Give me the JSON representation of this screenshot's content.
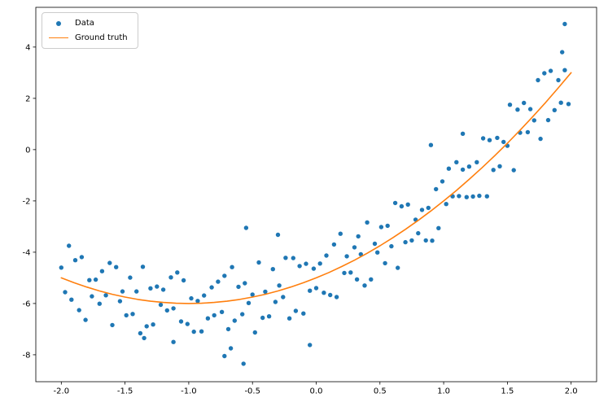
{
  "chart_data": {
    "type": "scatter",
    "title": "",
    "xlabel": "",
    "ylabel": "",
    "grid": false,
    "xlim": [
      -2.2,
      2.2
    ],
    "ylim": [
      -9.05,
      5.55
    ],
    "x_ticks": [
      -2.0,
      -1.5,
      -1.0,
      -0.5,
      0.0,
      0.5,
      1.0,
      1.5,
      2.0
    ],
    "x_tick_labels": [
      "-2.0",
      "-1.5",
      "-1.0",
      "-0.5",
      "0.0",
      "0.5",
      "1.0",
      "1.5",
      "2.0"
    ],
    "y_ticks": [
      -8,
      -6,
      -4,
      -2,
      0,
      2,
      4
    ],
    "y_tick_labels": [
      "-8",
      "-6",
      "-4",
      "-2",
      "0",
      "2",
      "4"
    ],
    "colors": {
      "scatter": "#1f77b4",
      "line": "#ff7f0e",
      "spine": "#000000"
    },
    "legend": {
      "position": "upper left",
      "entries": [
        {
          "label": "Data",
          "type": "marker",
          "color": "#1f77b4"
        },
        {
          "label": "Ground truth",
          "type": "line",
          "color": "#ff7f0e"
        }
      ]
    },
    "series": [
      {
        "name": "Data",
        "type": "scatter",
        "color": "#1f77b4",
        "marker_radius": 2.7,
        "points": [
          [
            -2.0,
            -4.6
          ],
          [
            -1.92,
            -5.85
          ],
          [
            -1.84,
            -4.19
          ],
          [
            -1.76,
            -5.72
          ],
          [
            -1.68,
            -4.74
          ],
          [
            -1.6,
            -6.84
          ],
          [
            -1.52,
            -5.53
          ],
          [
            -1.44,
            -6.41
          ],
          [
            -1.36,
            -4.57
          ],
          [
            -1.28,
            -6.82
          ],
          [
            -1.2,
            -5.46
          ],
          [
            -1.12,
            -6.19
          ],
          [
            -1.04,
            -5.1
          ],
          [
            -0.96,
            -7.1
          ],
          [
            -0.88,
            -5.69
          ],
          [
            -0.8,
            -6.46
          ],
          [
            -0.72,
            -4.92
          ],
          [
            -0.64,
            -6.67
          ],
          [
            -0.56,
            -5.21
          ],
          [
            -0.48,
            -7.13
          ],
          [
            -0.4,
            -5.54
          ],
          [
            -0.32,
            -5.94
          ],
          [
            -0.24,
            -4.22
          ],
          [
            -0.16,
            -6.29
          ],
          [
            -0.08,
            -4.45
          ],
          [
            0.0,
            -5.4
          ],
          [
            0.08,
            -4.13
          ],
          [
            0.16,
            -5.75
          ],
          [
            0.24,
            -4.16
          ],
          [
            0.32,
            -5.06
          ],
          [
            0.4,
            -2.84
          ],
          [
            0.48,
            -4.01
          ],
          [
            0.56,
            -2.97
          ],
          [
            0.64,
            -4.61
          ],
          [
            0.72,
            -2.14
          ],
          [
            0.8,
            -3.26
          ],
          [
            0.88,
            -2.27
          ],
          [
            0.96,
            -3.06
          ],
          [
            1.04,
            -0.74
          ],
          [
            1.12,
            -1.81
          ],
          [
            1.2,
            -0.66
          ],
          [
            1.28,
            -1.8
          ],
          [
            1.36,
            0.37
          ],
          [
            1.44,
            -0.65
          ],
          [
            1.52,
            1.75
          ],
          [
            1.6,
            0.66
          ],
          [
            1.68,
            1.58
          ],
          [
            1.76,
            0.42
          ],
          [
            1.84,
            3.07
          ],
          [
            1.92,
            1.83
          ],
          [
            -1.97,
            -5.56
          ],
          [
            -1.89,
            -4.31
          ],
          [
            -1.81,
            -6.64
          ],
          [
            -1.73,
            -5.07
          ],
          [
            -1.65,
            -5.68
          ],
          [
            -1.57,
            -4.58
          ],
          [
            -1.49,
            -6.46
          ],
          [
            -1.41,
            -5.53
          ],
          [
            -1.33,
            -6.89
          ],
          [
            -1.25,
            -5.34
          ],
          [
            -1.17,
            -6.27
          ],
          [
            -1.09,
            -4.79
          ],
          [
            -1.01,
            -6.8
          ],
          [
            -0.93,
            -5.9
          ],
          [
            -0.85,
            -6.58
          ],
          [
            -0.77,
            -5.15
          ],
          [
            -0.69,
            -7.0
          ],
          [
            -0.61,
            -5.35
          ],
          [
            -0.53,
            -5.98
          ],
          [
            -0.45,
            -4.4
          ],
          [
            -0.37,
            -6.5
          ],
          [
            -0.29,
            -5.3
          ],
          [
            -0.21,
            -6.58
          ],
          [
            -0.13,
            -4.54
          ],
          [
            -0.05,
            -5.5
          ],
          [
            0.03,
            -4.44
          ],
          [
            0.11,
            -5.67
          ],
          [
            0.19,
            -3.28
          ],
          [
            0.27,
            -4.79
          ],
          [
            0.35,
            -4.08
          ],
          [
            0.43,
            -5.06
          ],
          [
            0.51,
            -3.02
          ],
          [
            0.59,
            -3.77
          ],
          [
            0.67,
            -2.21
          ],
          [
            0.75,
            -3.54
          ],
          [
            0.83,
            -2.35
          ],
          [
            0.91,
            -3.55
          ],
          [
            0.99,
            -1.24
          ],
          [
            1.07,
            -1.82
          ],
          [
            1.15,
            -0.78
          ],
          [
            1.23,
            -1.83
          ],
          [
            1.31,
            0.44
          ],
          [
            1.39,
            -0.79
          ],
          [
            1.47,
            0.3
          ],
          [
            1.55,
            -0.8
          ],
          [
            1.63,
            1.82
          ],
          [
            1.71,
            1.14
          ],
          [
            1.79,
            2.98
          ],
          [
            1.87,
            1.54
          ],
          [
            1.95,
            3.1
          ],
          [
            -1.94,
            -3.75
          ],
          [
            -1.86,
            -6.26
          ],
          [
            -1.78,
            -5.09
          ],
          [
            -1.7,
            -6.01
          ],
          [
            -1.62,
            -4.42
          ],
          [
            -1.54,
            -5.91
          ],
          [
            -1.46,
            -4.99
          ],
          [
            -1.38,
            -7.16
          ],
          [
            -1.3,
            -5.41
          ],
          [
            -1.22,
            -6.05
          ],
          [
            -1.14,
            -4.98
          ],
          [
            -1.06,
            -6.7
          ],
          [
            -0.98,
            -5.8
          ],
          [
            -0.9,
            -7.09
          ],
          [
            -0.82,
            -5.37
          ],
          [
            -0.74,
            -6.33
          ],
          [
            -0.66,
            -4.58
          ],
          [
            -0.58,
            -6.42
          ],
          [
            -0.5,
            -5.65
          ],
          [
            -0.42,
            -6.56
          ],
          [
            -0.34,
            -4.66
          ],
          [
            -0.26,
            -5.75
          ],
          [
            -0.18,
            -4.23
          ],
          [
            -0.1,
            -6.39
          ],
          [
            -0.02,
            -4.64
          ],
          [
            0.06,
            -5.58
          ],
          [
            0.14,
            -3.7
          ],
          [
            0.22,
            -4.81
          ],
          [
            0.3,
            -3.81
          ],
          [
            0.38,
            -5.3
          ],
          [
            0.46,
            -3.67
          ],
          [
            0.54,
            -4.43
          ],
          [
            0.62,
            -2.08
          ],
          [
            0.7,
            -3.61
          ],
          [
            0.78,
            -2.73
          ],
          [
            0.86,
            -3.54
          ],
          [
            0.94,
            -1.54
          ],
          [
            1.02,
            -2.12
          ],
          [
            1.1,
            -0.49
          ],
          [
            1.18,
            -1.85
          ],
          [
            1.26,
            -0.49
          ],
          [
            1.34,
            -1.82
          ],
          [
            1.42,
            0.46
          ],
          [
            1.5,
            0.15
          ],
          [
            1.58,
            1.56
          ],
          [
            1.66,
            0.68
          ],
          [
            1.74,
            2.71
          ],
          [
            1.82,
            1.15
          ],
          [
            1.9,
            2.71
          ],
          [
            1.98,
            1.78
          ],
          [
            -0.55,
            -3.05
          ],
          [
            -0.57,
            -8.35
          ],
          [
            -0.72,
            -8.05
          ],
          [
            -0.67,
            -7.75
          ],
          [
            -1.35,
            -7.35
          ],
          [
            -1.12,
            -7.5
          ],
          [
            -0.05,
            -7.62
          ],
          [
            -0.3,
            -3.32
          ],
          [
            0.33,
            -3.38
          ],
          [
            0.9,
            0.18
          ],
          [
            1.15,
            0.62
          ],
          [
            1.95,
            4.9
          ],
          [
            1.93,
            3.8
          ]
        ]
      },
      {
        "name": "Ground truth",
        "type": "line",
        "color": "#ff7f0e",
        "line_width": 1.6,
        "points": [
          [
            -2.0,
            -5.0
          ],
          [
            -1.9,
            -5.19
          ],
          [
            -1.8,
            -5.36
          ],
          [
            -1.7,
            -5.51
          ],
          [
            -1.6,
            -5.64
          ],
          [
            -1.5,
            -5.75
          ],
          [
            -1.4,
            -5.84
          ],
          [
            -1.3,
            -5.91
          ],
          [
            -1.2,
            -5.96
          ],
          [
            -1.1,
            -5.99
          ],
          [
            -1.0,
            -6.0
          ],
          [
            -0.9,
            -5.99
          ],
          [
            -0.8,
            -5.96
          ],
          [
            -0.7,
            -5.91
          ],
          [
            -0.6,
            -5.84
          ],
          [
            -0.5,
            -5.75
          ],
          [
            -0.4,
            -5.64
          ],
          [
            -0.3,
            -5.51
          ],
          [
            -0.2,
            -5.36
          ],
          [
            -0.1,
            -5.19
          ],
          [
            0.0,
            -5.0
          ],
          [
            0.1,
            -4.79
          ],
          [
            0.2,
            -4.56
          ],
          [
            0.3,
            -4.31
          ],
          [
            0.4,
            -4.04
          ],
          [
            0.5,
            -3.75
          ],
          [
            0.6,
            -3.44
          ],
          [
            0.7,
            -3.11
          ],
          [
            0.8,
            -2.76
          ],
          [
            0.9,
            -2.39
          ],
          [
            1.0,
            -2.0
          ],
          [
            1.1,
            -1.59
          ],
          [
            1.2,
            -1.16
          ],
          [
            1.3,
            -0.71
          ],
          [
            1.4,
            -0.24
          ],
          [
            1.5,
            0.25
          ],
          [
            1.6,
            0.76
          ],
          [
            1.7,
            1.29
          ],
          [
            1.8,
            1.84
          ],
          [
            1.9,
            2.41
          ],
          [
            2.0,
            3.0
          ]
        ]
      }
    ]
  }
}
